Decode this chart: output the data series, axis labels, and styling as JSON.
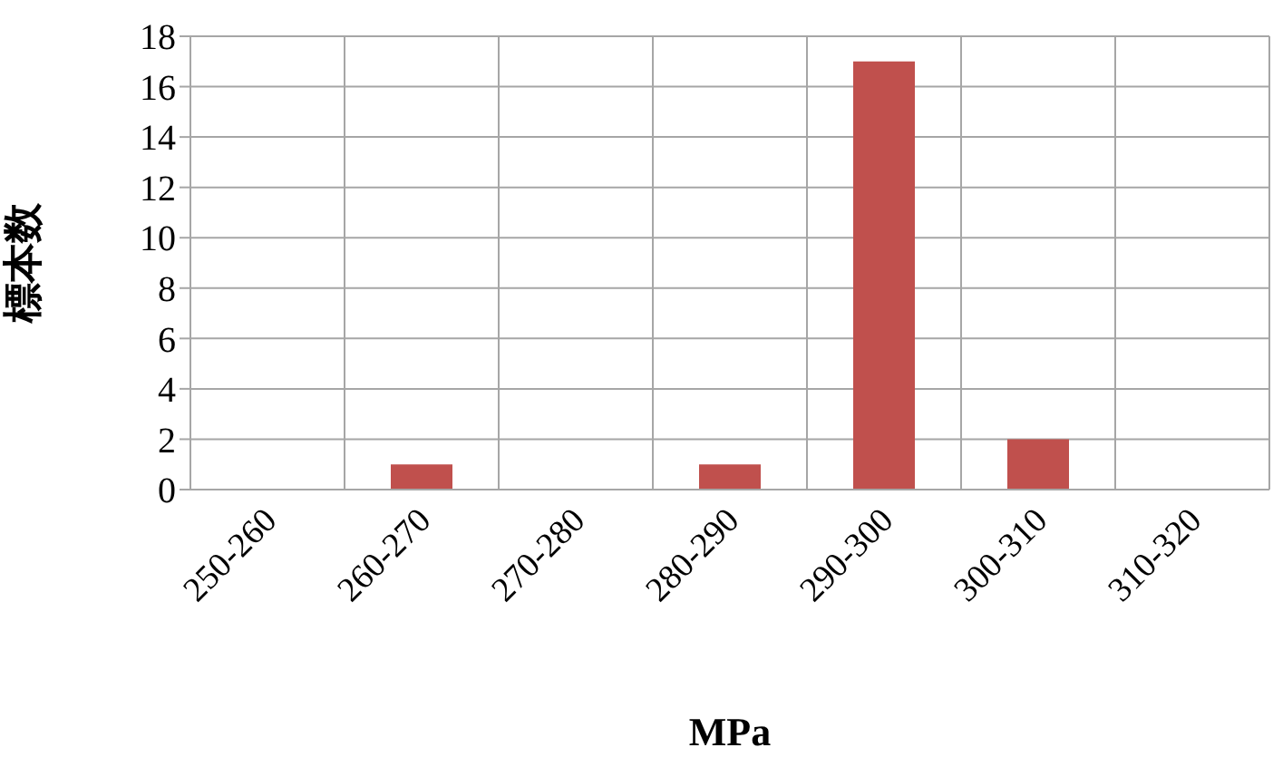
{
  "chart_data": {
    "type": "bar",
    "xlabel": "MPa",
    "ylabel": "標本数",
    "categories": [
      "250-260",
      "260-270",
      "270-280",
      "280-290",
      "290-300",
      "300-310",
      "310-320"
    ],
    "values": [
      0,
      1,
      0,
      1,
      17,
      2,
      0
    ],
    "color": "#c0504d",
    "ylim": [
      0,
      18
    ],
    "yticks": [
      0,
      2,
      4,
      6,
      8,
      10,
      12,
      14,
      16,
      18
    ],
    "grid": true
  }
}
